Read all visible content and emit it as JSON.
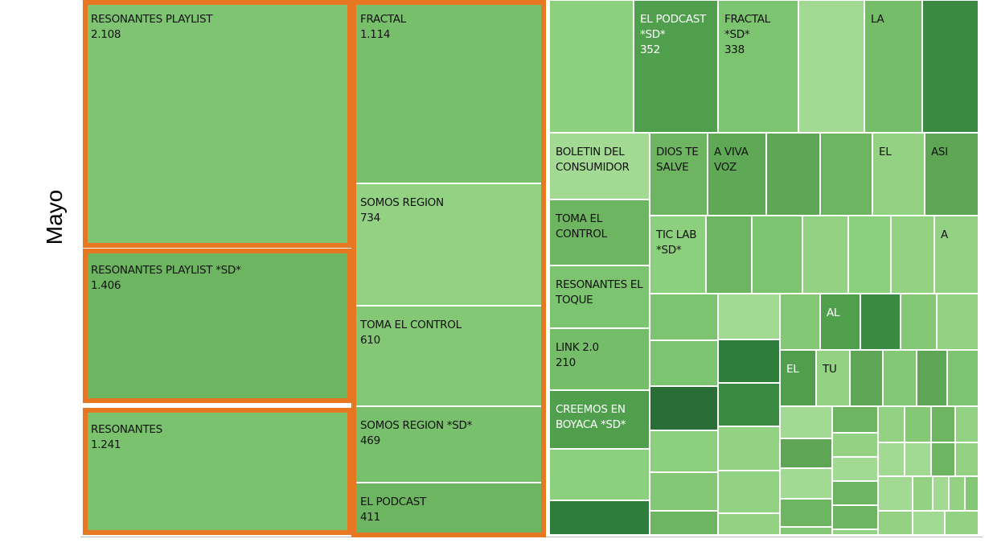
{
  "chart_data": {
    "type": "treemap",
    "row_label": "Mayo",
    "categories": [
      "RESONANTES PLAYLIST",
      "RESONANTES PLAYLIST *SD*",
      "RESONANTES",
      "FRACTAL",
      "SOMOS REGION",
      "TOMA EL CONTROL",
      "SOMOS REGION *SD*",
      "EL PODCAST",
      "EL PODCAST *SD*",
      "FRACTAL *SD*",
      "LA",
      "BOLETIN DEL CONSUMIDOR",
      "DIOS TE SALVE",
      "A VIVA VOZ",
      "EL",
      "ASI",
      "TOMA EL CONTROL",
      "RESONANTES EL TOQUE",
      "LINK 2.0",
      "CREEMOS EN BOYACA *SD*",
      "TIC LAB *SD*",
      "A",
      "AL",
      "EL",
      "TU"
    ],
    "values": [
      2108,
      1406,
      1241,
      1114,
      734,
      610,
      469,
      411,
      352,
      338,
      null,
      null,
      null,
      null,
      null,
      null,
      null,
      null,
      210,
      null,
      null,
      null,
      null,
      null,
      null
    ],
    "value_labels": [
      "2.108",
      "1.406",
      "1.241",
      "1.114",
      "734",
      "610",
      "469",
      "411",
      "352",
      "338",
      null,
      null,
      null,
      null,
      null,
      null,
      null,
      null,
      "210",
      null,
      null,
      null,
      null,
      null,
      null
    ],
    "colors": [
      "#7fc472",
      "#6db561",
      "#7bc26e",
      "#78bf6b",
      "#93d283",
      "#84c876",
      "#78c06b",
      "#6db561",
      "#4f9f4c",
      "#7cc46f",
      "#75bd68",
      "#a3da93",
      "#6db561",
      "#5fa956",
      "#93d283",
      "#5ea655",
      "#6db561",
      "#7cc46f",
      "#75bd68",
      "#4f9f4c",
      "#8ccf7c",
      "#93d283",
      "#4f9f4c",
      "#4f9f4c",
      "#93d283"
    ]
  }
}
